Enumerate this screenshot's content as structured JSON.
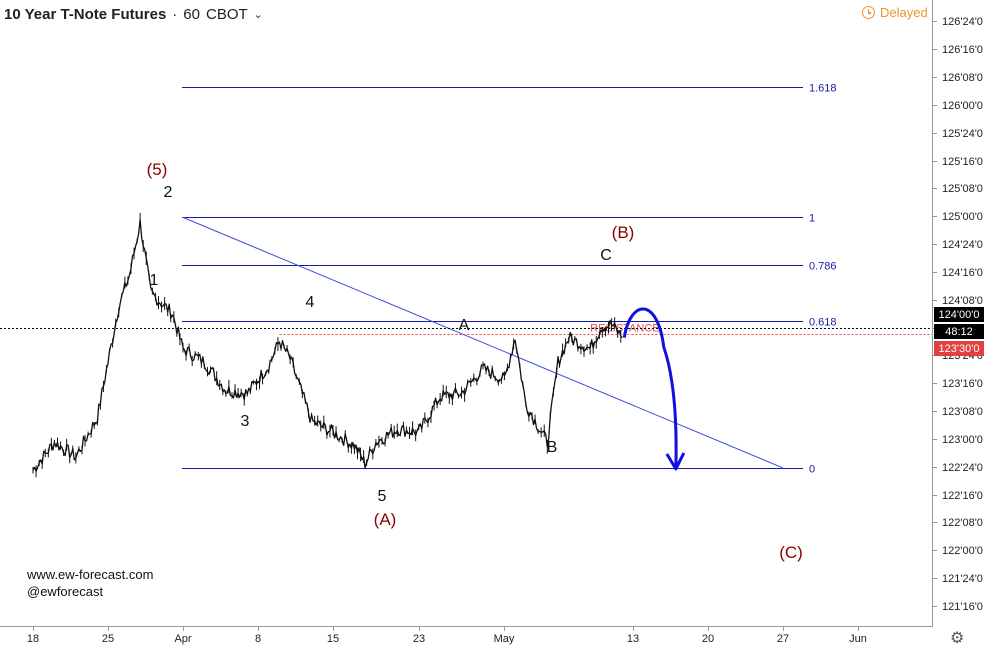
{
  "header": {
    "title": "10 Year T-Note Futures",
    "separator": "·",
    "interval": "60",
    "exchange": "CBOT",
    "dropdown_icon": "chevron-down-icon",
    "delayed_label": "Delayed",
    "delayed_icon": "clock-icon"
  },
  "credits": {
    "site": "www.ew-forecast.com",
    "handle": "@ewforecast"
  },
  "settings_icon": "gear-icon",
  "colors": {
    "candles": "#111111",
    "fib": "#1a1aa8",
    "trendline": "#3d4dd8",
    "projection": "#1010e0",
    "wave_major": "#8b0000",
    "wave_minor": "#111111",
    "resistance": "#e05050",
    "price_badge": "#000000",
    "resistance_badge": "#e04040",
    "delayed": "#f0932b"
  },
  "chart_data": {
    "type": "line",
    "symbol": "10 Year T-Note Futures",
    "interval": "60",
    "exchange": "CBOT",
    "y_axis_ticks": [
      "121'16'0",
      "121'24'0",
      "122'00'0",
      "122'08'0",
      "122'16'0",
      "122'24'0",
      "123'00'0",
      "123'08'0",
      "123'16'0",
      "123'24'0",
      "124'00'0",
      "124'08'0",
      "124'16'0",
      "124'24'0",
      "125'00'0",
      "125'08'0",
      "125'16'0",
      "125'24'0",
      "126'00'0",
      "126'08'0",
      "126'16'0",
      "126'24'0"
    ],
    "x_axis_ticks": [
      "18",
      "25",
      "Apr",
      "8",
      "15",
      "23",
      "May",
      "13",
      "20",
      "27",
      "Jun"
    ],
    "ylim_ticks": [
      121.5,
      126.75
    ],
    "price_path": [
      [
        "Mar 18",
        122.72
      ],
      [
        "Mar 20",
        122.97
      ],
      [
        "Mar 22",
        122.84
      ],
      [
        "Mar 24",
        123.19
      ],
      [
        "Mar 26",
        124.19
      ],
      [
        "Mar 27",
        124.47
      ],
      [
        "Mar 28",
        124.94
      ],
      [
        "Mar 29",
        124.31
      ],
      [
        "Mar 31",
        124.13
      ],
      [
        "Apr 1",
        123.81
      ],
      [
        "Apr 3",
        123.69
      ],
      [
        "Apr 5",
        123.44
      ],
      [
        "Apr 7",
        123.41
      ],
      [
        "Apr 9",
        123.66
      ],
      [
        "Apr 10",
        123.88
      ],
      [
        "Apr 11",
        123.72
      ],
      [
        "Apr 13",
        123.16
      ],
      [
        "Apr 15",
        123.06
      ],
      [
        "Apr 17",
        122.94
      ],
      [
        "Apr 18",
        122.78
      ],
      [
        "Apr 19",
        122.97
      ],
      [
        "Apr 21",
        123.09
      ],
      [
        "Apr 23",
        123.06
      ],
      [
        "Apr 25",
        123.38
      ],
      [
        "Apr 27",
        123.41
      ],
      [
        "Apr 29",
        123.63
      ],
      [
        "May 1",
        123.53
      ],
      [
        "May 2",
        123.91
      ],
      [
        "May 3",
        123.31
      ],
      [
        "May 5",
        122.97
      ],
      [
        "May 6",
        123.69
      ],
      [
        "May 7",
        123.91
      ],
      [
        "May 9",
        123.81
      ],
      [
        "May 10",
        124.0
      ],
      [
        "May 11",
        124.03
      ],
      [
        "May 12",
        123.91
      ]
    ],
    "fibonacci": [
      {
        "level": "1.618",
        "price": 126.16
      },
      {
        "level": "1",
        "price": 124.99
      },
      {
        "level": "0.786",
        "price": 124.56
      },
      {
        "level": "0.618",
        "price": 124.06
      },
      {
        "level": "0",
        "price": 122.74
      }
    ],
    "trendline": {
      "from": [
        "Apr 1",
        124.99
      ],
      "to": [
        "May 27",
        122.74
      ]
    },
    "projection": {
      "from": [
        "May 12",
        123.91
      ],
      "peak": [
        "May 14",
        124.06
      ],
      "to": [
        "May 17",
        122.74
      ]
    },
    "resistance": {
      "label": "RESISTANCE",
      "price": 123.94
    },
    "price_line": {
      "price": 124.0,
      "label": "124'00'0"
    },
    "countdown_label": "48:12",
    "resistance_price_label": "123'30'0",
    "wave_labels": [
      {
        "text": "(5)",
        "kind": "major"
      },
      {
        "text": "2",
        "kind": "minor"
      },
      {
        "text": "1",
        "kind": "minor"
      },
      {
        "text": "3",
        "kind": "minor"
      },
      {
        "text": "4",
        "kind": "minor"
      },
      {
        "text": "5",
        "kind": "minor"
      },
      {
        "text": "(A)",
        "kind": "major"
      },
      {
        "text": "A",
        "kind": "minor"
      },
      {
        "text": "B",
        "kind": "minor"
      },
      {
        "text": "C",
        "kind": "minor"
      },
      {
        "text": "(B)",
        "kind": "major"
      },
      {
        "text": "(C)",
        "kind": "major"
      }
    ],
    "grid": false
  }
}
